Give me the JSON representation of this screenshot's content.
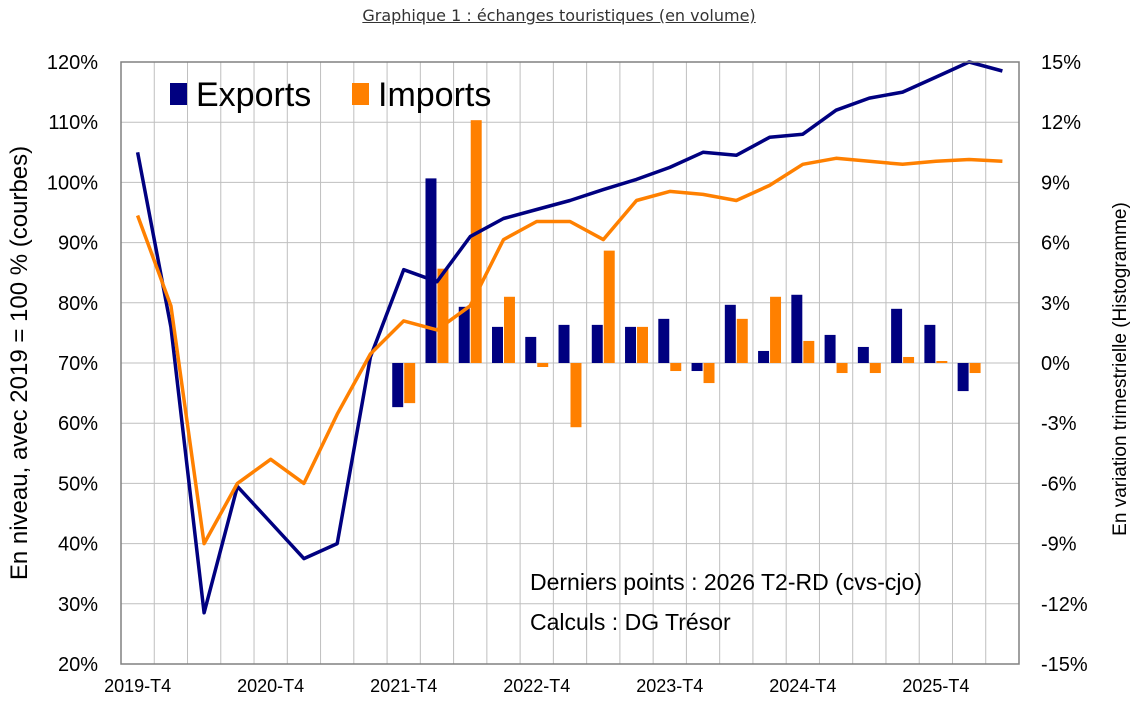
{
  "caption": "Graphique 1 : échanges touristiques (en volume)",
  "colors": {
    "exports": "#000080",
    "imports": "#FF8000",
    "grid": "#BFBFBF"
  },
  "chart_data": {
    "type": "line+bar",
    "y_left": {
      "label": "En niveau, avec 2019 = 100 % (courbes)",
      "range": [
        20,
        120
      ],
      "ticks": [
        "20%",
        "30%",
        "40%",
        "50%",
        "60%",
        "70%",
        "80%",
        "90%",
        "100%",
        "110%",
        "120%"
      ]
    },
    "y_right": {
      "label": "En variation trimestrielle  (Histogramme)",
      "range": [
        -15,
        15
      ],
      "ticks": [
        "-15%",
        "-12%",
        "-9%",
        "-6%",
        "-3%",
        "0%",
        "3%",
        "6%",
        "9%",
        "12%",
        "15%"
      ]
    },
    "x_ticks": [
      {
        "label": "2019-T4",
        "index": 0
      },
      {
        "label": "2020-T4",
        "index": 4
      },
      {
        "label": "2021-T4",
        "index": 8
      },
      {
        "label": "2022-T4",
        "index": 12
      },
      {
        "label": "2023-T4",
        "index": 16
      },
      {
        "label": "2024-T4",
        "index": 20
      },
      {
        "label": "2025-T4",
        "index": 24
      }
    ],
    "periods": [
      "2019-T4",
      "2020-T1",
      "2020-T2",
      "2020-T3",
      "2020-T4",
      "2021-T1",
      "2021-T2",
      "2021-T3",
      "2021-T4",
      "2022-T1",
      "2022-T2",
      "2022-T3",
      "2022-T4",
      "2023-T1",
      "2023-T2",
      "2023-T3",
      "2023-T4",
      "2024-T1",
      "2024-T2",
      "2024-T3",
      "2024-T4",
      "2025-T1",
      "2025-T2",
      "2025-T3",
      "2025-T4",
      "2026-T1",
      "2026-T2"
    ],
    "series": [
      {
        "name": "Exports",
        "lines": [
          105,
          76,
          28.5,
          49.5,
          43.5,
          37.5,
          40,
          71,
          85.5,
          83.5,
          91,
          94,
          95.5,
          97,
          98.8,
          100.5,
          102.5,
          105,
          104.5,
          107.5,
          108,
          112,
          114,
          115,
          117.5,
          120,
          118.5
        ],
        "bars": [
          null,
          null,
          null,
          null,
          null,
          null,
          null,
          null,
          -2.2,
          9.2,
          2.8,
          1.8,
          1.3,
          1.9,
          1.9,
          1.8,
          2.2,
          -0.4,
          2.9,
          0.6,
          3.4,
          1.4,
          0.8,
          2.7,
          1.9,
          -1.4,
          null
        ]
      },
      {
        "name": "Imports",
        "lines": [
          94.5,
          79.5,
          40,
          50,
          54,
          50,
          61.5,
          71.5,
          77,
          75.5,
          79.5,
          90.5,
          93.5,
          93.5,
          90.5,
          97,
          98.5,
          98,
          97,
          99.5,
          103,
          104,
          103.5,
          103,
          103.5,
          103.8,
          103.5
        ],
        "bars": [
          null,
          null,
          null,
          null,
          null,
          null,
          null,
          null,
          -2.0,
          4.7,
          12.1,
          3.3,
          -0.2,
          -3.2,
          5.6,
          1.8,
          -0.4,
          -1.0,
          2.2,
          3.3,
          1.1,
          -0.5,
          -0.5,
          0.3,
          0.1,
          -0.5,
          null
        ]
      }
    ],
    "legend": {
      "placement": "top-left",
      "entries": [
        "Exports",
        "Imports"
      ]
    },
    "grid": true,
    "annotations": [
      "Derniers points : 2026 T2-RD  (cvs-cjo)",
      "Calculs : DG Trésor"
    ]
  }
}
